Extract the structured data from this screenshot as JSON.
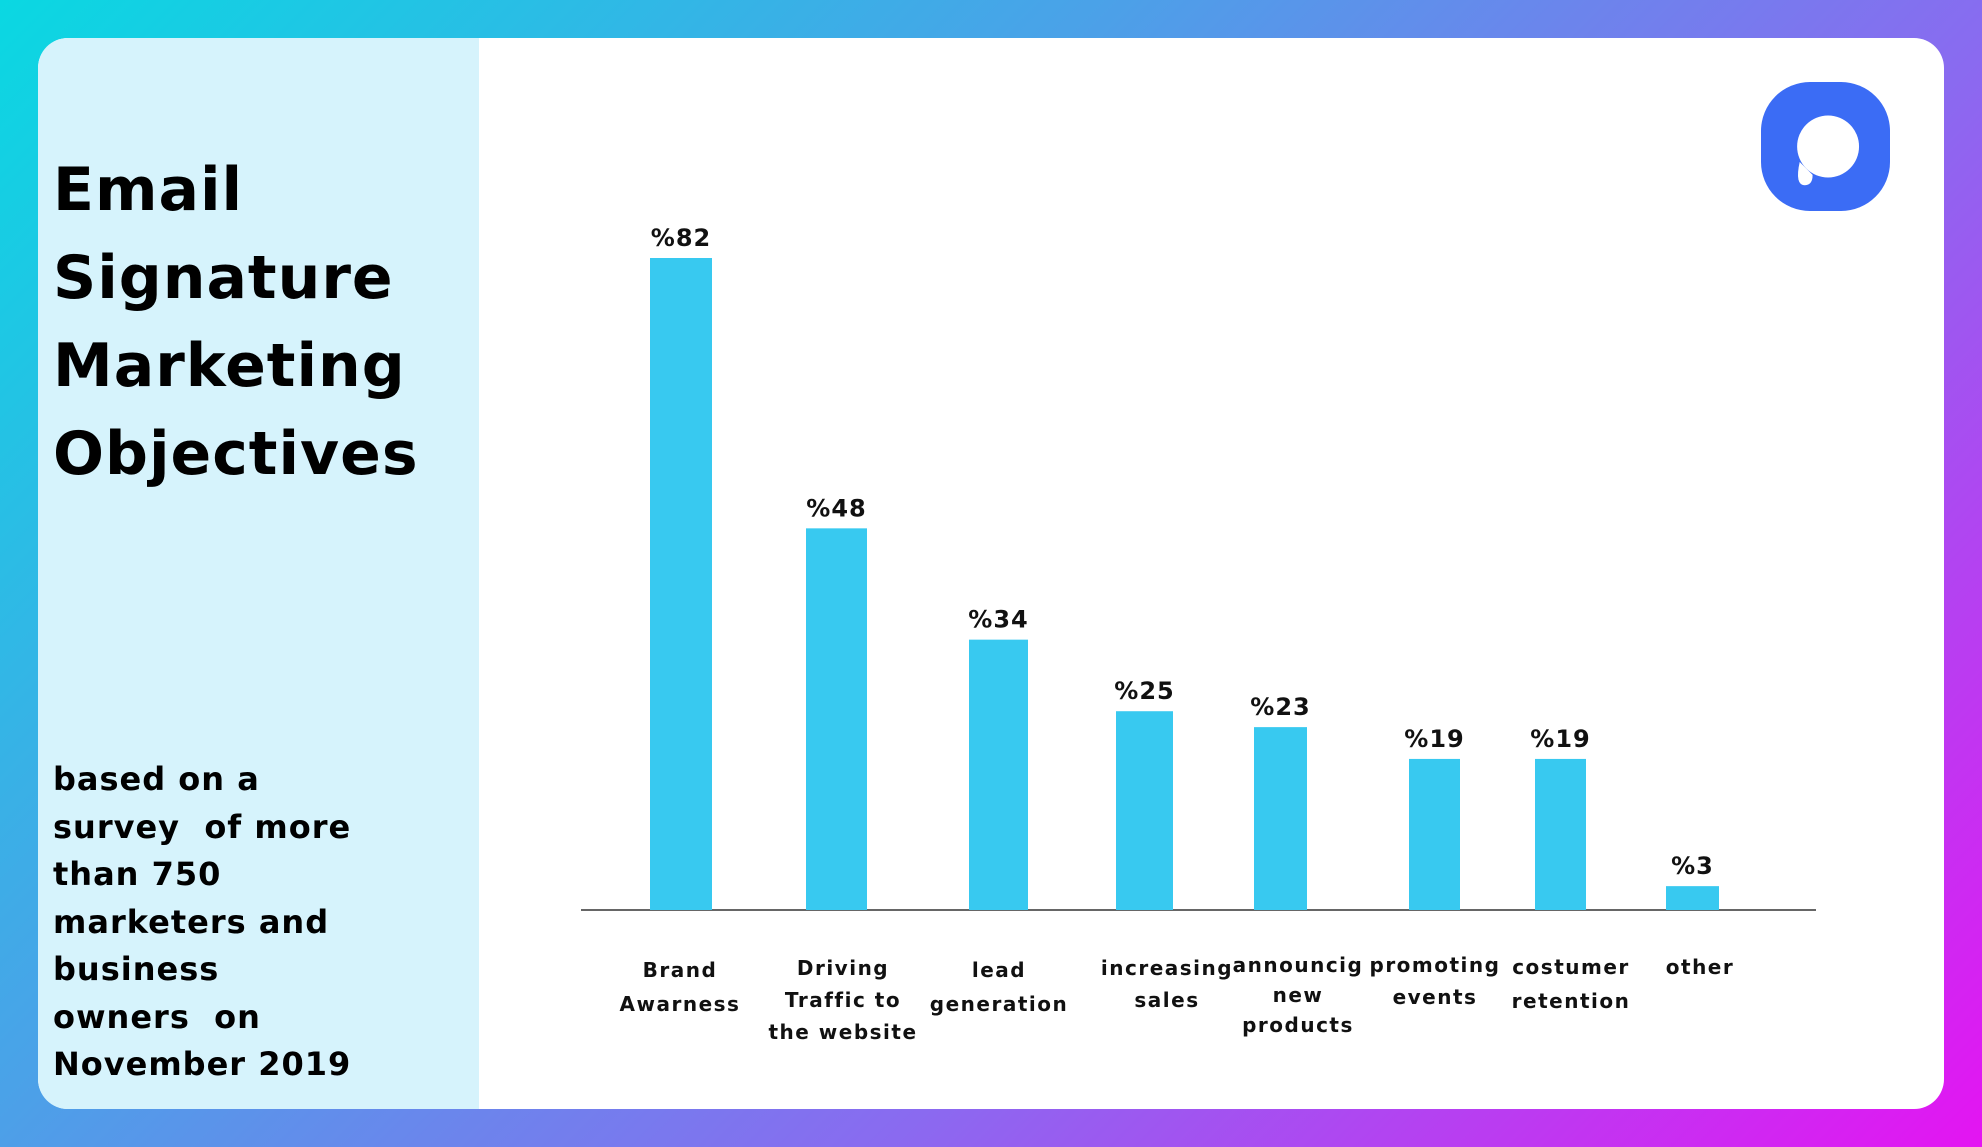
{
  "title_lines": [
    "Email",
    "Signature",
    "Marketing",
    "Objectives"
  ],
  "subtitle_lines": [
    "based on a",
    "survey  of more",
    "than 750",
    "marketers and",
    "business",
    "owners  on",
    "November 2019"
  ],
  "logo": {
    "icon": "speech-bubble-logo",
    "color": "#3b6cf5"
  },
  "colors": {
    "bar": "#38c9f0",
    "axis": "#666666",
    "panel": "#d6f3fc"
  },
  "chart_data": {
    "type": "bar",
    "title": "Email Signature Marketing Objectives",
    "xlabel": "",
    "ylabel": "",
    "ylim": [
      0,
      82
    ],
    "grid": false,
    "categories": [
      [
        "Brand",
        "Awarness"
      ],
      [
        "Driving",
        "Traffic to",
        "the website"
      ],
      [
        "lead",
        "generation"
      ],
      [
        "increasing",
        "sales"
      ],
      [
        "announcig",
        "new",
        "products"
      ],
      [
        "promoting",
        "events"
      ],
      [
        "costumer",
        "retention"
      ],
      [
        "other"
      ]
    ],
    "values": [
      82,
      48,
      34,
      25,
      23,
      19,
      19,
      3
    ],
    "value_labels": [
      "%82",
      "%48",
      "%34",
      "%25",
      "%23",
      "%19",
      "%19",
      "%3"
    ]
  }
}
